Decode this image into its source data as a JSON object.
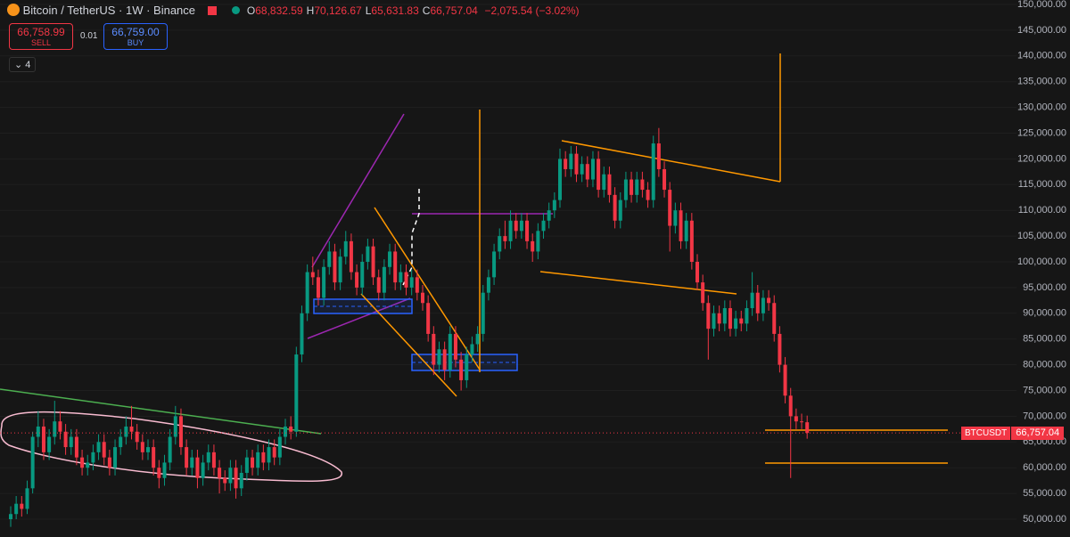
{
  "header": {
    "symbol": "Bitcoin / TetherUS · 1W · Binance",
    "ohlc": [
      {
        "key": "O",
        "value": "68,832.59"
      },
      {
        "key": "H",
        "value": "70,126.67"
      },
      {
        "key": "L",
        "value": "65,631.83"
      },
      {
        "key": "C",
        "value": "66,757.04"
      }
    ],
    "change": "−2,075.54 (−3.02%)",
    "sell_price": "66,758.99",
    "sell": "SELL",
    "spread": "0.01",
    "buy_price": "66,759.00",
    "buy": "BUY",
    "indicators": "4"
  },
  "chart_data": {
    "type": "candlestick",
    "up_color": "#089981",
    "down_color": "#f23645",
    "grid": true,
    "ylim": [
      46540,
      150865
    ],
    "yticks": [
      {
        "value": 50000,
        "label": "50,000.00"
      },
      {
        "value": 55000,
        "label": "55,000.00"
      },
      {
        "value": 60000,
        "label": "60,000.00"
      },
      {
        "value": 65000,
        "label": "65,000.00"
      },
      {
        "value": 70000,
        "label": "70,000.00"
      },
      {
        "value": 75000,
        "label": "75,000.00"
      },
      {
        "value": 80000,
        "label": "80,000.00"
      },
      {
        "value": 85000,
        "label": "85,000.00"
      },
      {
        "value": 90000,
        "label": "90,000.00"
      },
      {
        "value": 95000,
        "label": "95,000.00"
      },
      {
        "value": 100000,
        "label": "100,000.00"
      },
      {
        "value": 105000,
        "label": "105,000.00"
      },
      {
        "value": 110000,
        "label": "110,000.00"
      },
      {
        "value": 115000,
        "label": "115,000.00"
      },
      {
        "value": 120000,
        "label": "120,000.00"
      },
      {
        "value": 125000,
        "label": "125,000.00"
      },
      {
        "value": 130000,
        "label": "130,000.00"
      },
      {
        "value": 135000,
        "label": "135,000.00"
      },
      {
        "value": 140000,
        "label": "140,000.00"
      },
      {
        "value": 145000,
        "label": "145,000.00"
      },
      {
        "value": 150000,
        "label": "150,000.00"
      }
    ],
    "price_tag": {
      "symbol": "BTCUSDT",
      "price": "66,757.04"
    },
    "open": [
      50000,
      51000,
      53000,
      52000,
      56000,
      66000,
      68000,
      63000,
      66000,
      69000,
      67000,
      64000,
      66000,
      62000,
      60000,
      61000,
      63000,
      65000,
      62000,
      60000,
      64000,
      66000,
      68000,
      67000,
      65000,
      63000,
      64000,
      60000,
      58000,
      61000,
      66000,
      70000,
      64000,
      60000,
      62000,
      58000,
      61000,
      63000,
      60000,
      58000,
      57000,
      60000,
      56000,
      59000,
      62000,
      60000,
      63000,
      61000,
      64000,
      62000,
      66000,
      68000,
      67000,
      82000,
      90000,
      98000,
      97000,
      93000,
      99000,
      102000,
      96000,
      101000,
      104000,
      98000,
      95000,
      100000,
      103000,
      97000,
      94000,
      99000,
      102000,
      96000,
      98000,
      95000,
      97000,
      94000,
      92000,
      86000,
      80000,
      83000,
      79000,
      86000,
      81000,
      77000,
      82000,
      84000,
      86000,
      94000,
      97000,
      102000,
      105000,
      104000,
      108000,
      106000,
      108000,
      104000,
      102000,
      106000,
      108000,
      110000,
      112000,
      120000,
      118000,
      121000,
      117000,
      119000,
      116000,
      120000,
      114000,
      117000,
      113000,
      108000,
      112000,
      116000,
      113000,
      116000,
      114000,
      112000,
      123000,
      118000,
      114000,
      107000,
      110000,
      104000,
      108000,
      100000,
      96000,
      92000,
      87000,
      90000,
      88000,
      91000,
      87000,
      89000,
      88000,
      91000,
      94000,
      90000,
      93000,
      92000,
      86000,
      80000,
      74000,
      70000,
      69000,
      68832.59
    ],
    "high": [
      52500,
      54500,
      54500,
      57500,
      67000,
      71000,
      69500,
      67500,
      73000,
      71000,
      68500,
      67500,
      67500,
      63500,
      62500,
      64500,
      66500,
      66500,
      63500,
      65500,
      67500,
      70000,
      72000,
      68500,
      66500,
      65500,
      65500,
      61500,
      62500,
      67500,
      72000,
      71500,
      65500,
      63500,
      63500,
      62500,
      64500,
      64500,
      61500,
      59500,
      61500,
      61500,
      60500,
      63500,
      63500,
      64500,
      64500,
      65500,
      65500,
      67500,
      69500,
      70000,
      83500,
      91500,
      99500,
      101000,
      98500,
      100500,
      104000,
      103500,
      102500,
      106000,
      105500,
      99500,
      101500,
      104500,
      104500,
      98500,
      100500,
      103500,
      103500,
      99500,
      99500,
      98500,
      98500,
      95500,
      93500,
      87500,
      84500,
      84500,
      87500,
      87500,
      82500,
      83500,
      85500,
      87500,
      95500,
      98500,
      103500,
      106500,
      108000,
      110000,
      109500,
      109500,
      109500,
      105500,
      107500,
      109500,
      111500,
      113500,
      122000,
      121500,
      122500,
      122500,
      120500,
      120500,
      121500,
      121500,
      118500,
      118500,
      114500,
      113500,
      117500,
      117500,
      117500,
      117500,
      115500,
      124500,
      126000,
      119500,
      115500,
      111500,
      111500,
      109500,
      109500,
      101500,
      97500,
      93500,
      91500,
      91500,
      92500,
      92500,
      90500,
      90500,
      92500,
      98000,
      95500,
      94500,
      94500,
      93500,
      87500,
      81500,
      75500,
      71500,
      70500,
      70126.67
    ],
    "low": [
      48500,
      50000,
      50500,
      51000,
      55000,
      64000,
      61500,
      61500,
      64500,
      65500,
      62500,
      62500,
      60500,
      58500,
      58500,
      59500,
      61500,
      60500,
      58500,
      58500,
      62500,
      64500,
      65500,
      63500,
      61500,
      61500,
      58500,
      56000,
      56500,
      59500,
      64500,
      62500,
      58500,
      58500,
      56000,
      56500,
      59500,
      58500,
      55000,
      55500,
      55500,
      54000,
      54500,
      57500,
      58500,
      58500,
      59500,
      59500,
      60500,
      60500,
      64500,
      65500,
      66000,
      80500,
      88500,
      95500,
      91500,
      91500,
      97500,
      94500,
      94500,
      99500,
      96500,
      93500,
      93500,
      98500,
      95500,
      92500,
      92500,
      97500,
      94500,
      94500,
      93500,
      93500,
      92500,
      90500,
      84500,
      78000,
      78500,
      77000,
      77500,
      79500,
      75000,
      75500,
      80500,
      82500,
      84500,
      92500,
      95500,
      100500,
      102500,
      102500,
      104500,
      104500,
      102500,
      100000,
      100500,
      104500,
      106500,
      108500,
      110500,
      116500,
      116500,
      115500,
      115500,
      114500,
      114500,
      112500,
      112500,
      111500,
      106500,
      106500,
      110500,
      111500,
      111500,
      112500,
      110500,
      110500,
      116500,
      112500,
      102000,
      105500,
      102500,
      102500,
      98500,
      94500,
      90500,
      81000,
      85500,
      86500,
      86500,
      85500,
      85500,
      86500,
      86500,
      89500,
      88500,
      88500,
      90500,
      84500,
      78500,
      72500,
      58000,
      67500,
      67500,
      65631.83
    ],
    "close": [
      51000,
      53000,
      52000,
      56000,
      66000,
      68000,
      63000,
      66000,
      69000,
      67000,
      64000,
      66000,
      62000,
      60000,
      61000,
      63000,
      65000,
      62000,
      60000,
      64000,
      66000,
      68000,
      67000,
      65000,
      63000,
      64000,
      60000,
      58000,
      61000,
      66000,
      70000,
      64000,
      60000,
      62000,
      58000,
      61000,
      63000,
      60000,
      58000,
      57000,
      60000,
      56000,
      59000,
      62000,
      60000,
      63000,
      61000,
      64000,
      62000,
      66000,
      68000,
      67000,
      82000,
      90000,
      98000,
      97000,
      93000,
      99000,
      102000,
      96000,
      101000,
      104000,
      98000,
      95000,
      100000,
      103000,
      97000,
      94000,
      99000,
      102000,
      96000,
      98000,
      95000,
      97000,
      94000,
      92000,
      86000,
      80000,
      83000,
      79000,
      86000,
      81000,
      77000,
      82000,
      84000,
      86000,
      94000,
      97000,
      102000,
      105000,
      104000,
      108000,
      106000,
      108000,
      104000,
      102000,
      106000,
      108000,
      110000,
      112000,
      120000,
      118000,
      121000,
      117000,
      119000,
      116000,
      120000,
      114000,
      117000,
      113000,
      108000,
      112000,
      116000,
      113000,
      116000,
      114000,
      112000,
      123000,
      118000,
      114000,
      107000,
      110000,
      104000,
      108000,
      100000,
      96000,
      92000,
      87000,
      90000,
      88000,
      91000,
      87000,
      89000,
      88000,
      91000,
      94000,
      90000,
      93000,
      92000,
      86000,
      80000,
      74000,
      70000,
      69000,
      68832.59,
      66757.04
    ]
  }
}
